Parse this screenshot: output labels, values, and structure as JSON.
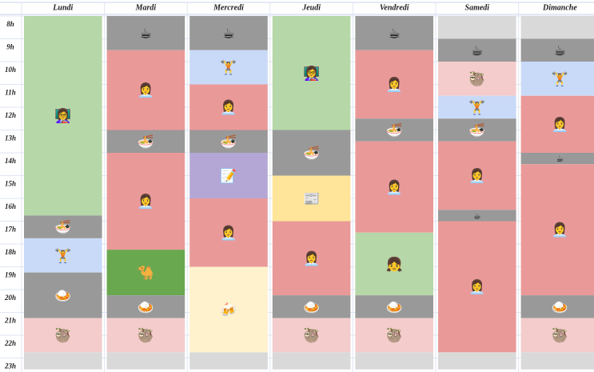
{
  "schedule": {
    "hours": [
      "8h",
      "9h",
      "10h",
      "11h",
      "12h",
      "13h",
      "14h",
      "15h",
      "16h",
      "17h",
      "18h",
      "19h",
      "20h",
      "21h",
      "22h",
      "23h"
    ],
    "days": [
      {
        "name": "Lundi",
        "blocks": [
          {
            "start": 8,
            "end": 16.75,
            "color": "#b6d7a8",
            "icon": "👩‍🏫"
          },
          {
            "start": 16.75,
            "end": 17.75,
            "color": "#999999",
            "icon": "🍜"
          },
          {
            "start": 17.75,
            "end": 19.25,
            "color": "#c9daf8",
            "icon": "🏋️"
          },
          {
            "start": 19.25,
            "end": 21.25,
            "color": "#999999",
            "icon": "🍛"
          },
          {
            "start": 21.25,
            "end": 22.75,
            "color": "#f4cccc",
            "icon": "🦥"
          },
          {
            "start": 22.75,
            "end": 23.5,
            "color": "#d9d9d9"
          }
        ]
      },
      {
        "name": "Mardi",
        "blocks": [
          {
            "start": 8,
            "end": 9.5,
            "color": "#999999",
            "icon": "☕"
          },
          {
            "start": 9.5,
            "end": 13,
            "color": "#ea9999",
            "icon": "👩‍💼"
          },
          {
            "start": 13,
            "end": 14,
            "color": "#999999",
            "icon": "🍜"
          },
          {
            "start": 14,
            "end": 18.25,
            "color": "#ea9999",
            "icon": "👩‍💼"
          },
          {
            "start": 18.25,
            "end": 20.25,
            "color": "#6aa84f",
            "icon": "🐪"
          },
          {
            "start": 20.25,
            "end": 21.25,
            "color": "#999999",
            "icon": "🍛"
          },
          {
            "start": 21.25,
            "end": 22.75,
            "color": "#f4cccc",
            "icon": "🦥"
          },
          {
            "start": 22.75,
            "end": 23.5,
            "color": "#d9d9d9"
          }
        ]
      },
      {
        "name": "Mercredi",
        "blocks": [
          {
            "start": 8,
            "end": 9.5,
            "color": "#999999",
            "icon": "☕"
          },
          {
            "start": 9.5,
            "end": 11,
            "color": "#c9daf8",
            "icon": "🏋️"
          },
          {
            "start": 11,
            "end": 13,
            "color": "#ea9999",
            "icon": "👩‍💼"
          },
          {
            "start": 13,
            "end": 14,
            "color": "#999999",
            "icon": "🍜"
          },
          {
            "start": 14,
            "end": 16,
            "color": "#b4a7d6",
            "icon": "📝"
          },
          {
            "start": 16,
            "end": 19,
            "color": "#ea9999",
            "icon": "👩‍💼"
          },
          {
            "start": 19,
            "end": 22.75,
            "color": "#fff2cc",
            "icon": "🍻"
          },
          {
            "start": 22.75,
            "end": 23.5,
            "color": "#d9d9d9"
          }
        ]
      },
      {
        "name": "Jeudi",
        "blocks": [
          {
            "start": 8,
            "end": 13,
            "color": "#b6d7a8",
            "icon": "👩‍🏫"
          },
          {
            "start": 13,
            "end": 15,
            "color": "#999999",
            "icon": "🍜"
          },
          {
            "start": 15,
            "end": 17,
            "color": "#ffe599",
            "icon": "📰"
          },
          {
            "start": 17,
            "end": 20.25,
            "color": "#ea9999",
            "icon": "👩‍💼"
          },
          {
            "start": 20.25,
            "end": 21.25,
            "color": "#999999",
            "icon": "🍛"
          },
          {
            "start": 21.25,
            "end": 22.75,
            "color": "#f4cccc",
            "icon": "🦥"
          },
          {
            "start": 22.75,
            "end": 23.5,
            "color": "#d9d9d9"
          }
        ]
      },
      {
        "name": "Vendredi",
        "blocks": [
          {
            "start": 8,
            "end": 9.5,
            "color": "#999999",
            "icon": "☕"
          },
          {
            "start": 9.5,
            "end": 12.5,
            "color": "#ea9999",
            "icon": "👩‍💼"
          },
          {
            "start": 12.5,
            "end": 13.5,
            "color": "#999999",
            "icon": "🍜"
          },
          {
            "start": 13.5,
            "end": 17.5,
            "color": "#ea9999",
            "icon": "👩‍💼"
          },
          {
            "start": 17.5,
            "end": 20.25,
            "color": "#b6d7a8",
            "icon": "👧"
          },
          {
            "start": 20.25,
            "end": 21.25,
            "color": "#999999",
            "icon": "🍛"
          },
          {
            "start": 21.25,
            "end": 22.75,
            "color": "#f4cccc",
            "icon": "🦥"
          },
          {
            "start": 22.75,
            "end": 23.5,
            "color": "#d9d9d9"
          }
        ]
      },
      {
        "name": "Samedi",
        "blocks": [
          {
            "start": 8,
            "end": 9,
            "color": "#d9d9d9"
          },
          {
            "start": 9,
            "end": 10,
            "color": "#999999",
            "icon": "☕"
          },
          {
            "start": 10,
            "end": 11.5,
            "color": "#f4cccc",
            "icon": "🦥"
          },
          {
            "start": 11.5,
            "end": 12.5,
            "color": "#c9daf8",
            "icon": "🏋️"
          },
          {
            "start": 12.5,
            "end": 13.5,
            "color": "#999999",
            "icon": "🍜"
          },
          {
            "start": 13.5,
            "end": 16.5,
            "color": "#ea9999",
            "icon": "👩‍💼"
          },
          {
            "start": 16.5,
            "end": 17,
            "color": "#999999",
            "icon": "☕"
          },
          {
            "start": 17,
            "end": 22.75,
            "color": "#ea9999",
            "icon": "👩‍💼"
          },
          {
            "start": 22.75,
            "end": 23.5,
            "color": "#d9d9d9"
          }
        ]
      },
      {
        "name": "Dimanche",
        "blocks": [
          {
            "start": 8,
            "end": 9,
            "color": "#d9d9d9"
          },
          {
            "start": 9,
            "end": 10,
            "color": "#999999",
            "icon": "☕"
          },
          {
            "start": 10,
            "end": 11.5,
            "color": "#c9daf8",
            "icon": "🏋️"
          },
          {
            "start": 11.5,
            "end": 14,
            "color": "#ea9999",
            "icon": "👩‍💼"
          },
          {
            "start": 14,
            "end": 14.5,
            "color": "#999999",
            "icon": "☕"
          },
          {
            "start": 14.5,
            "end": 20.25,
            "color": "#ea9999",
            "icon": "👩‍💼"
          },
          {
            "start": 20.25,
            "end": 21.25,
            "color": "#999999",
            "icon": "🍛"
          },
          {
            "start": 21.25,
            "end": 22.75,
            "color": "#f4cccc",
            "icon": "🦥"
          },
          {
            "start": 22.75,
            "end": 23.5,
            "color": "#d9d9d9"
          }
        ]
      }
    ]
  }
}
